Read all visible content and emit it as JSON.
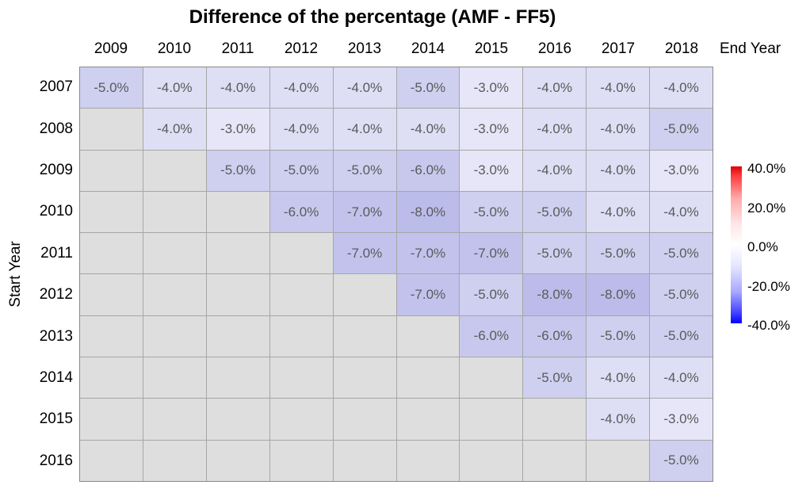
{
  "title": "Difference of the percentage (AMF - FF5)",
  "axis": {
    "x_label": "End Year",
    "y_label": "Start Year"
  },
  "chart_data": {
    "type": "heatmap",
    "title": "Difference of the percentage (AMF - FF5)",
    "xlabel": "End Year",
    "ylabel": "Start Year",
    "columns": [
      "2009",
      "2010",
      "2011",
      "2012",
      "2013",
      "2014",
      "2015",
      "2016",
      "2017",
      "2018"
    ],
    "rows": [
      "2007",
      "2008",
      "2009",
      "2010",
      "2011",
      "2012",
      "2013",
      "2014",
      "2015",
      "2016"
    ],
    "values": [
      [
        -5,
        -4,
        -4,
        -4,
        -4,
        -5,
        -3,
        -4,
        -4,
        -4
      ],
      [
        null,
        -4,
        -3,
        -4,
        -4,
        -4,
        -3,
        -4,
        -4,
        -5
      ],
      [
        null,
        null,
        -5,
        -5,
        -5,
        -6,
        -3,
        -4,
        -4,
        -3
      ],
      [
        null,
        null,
        null,
        -6,
        -7,
        -8,
        -5,
        -5,
        -4,
        -4
      ],
      [
        null,
        null,
        null,
        null,
        -7,
        -7,
        -7,
        -5,
        -5,
        -5
      ],
      [
        null,
        null,
        null,
        null,
        null,
        -7,
        -5,
        -8,
        -8,
        -5
      ],
      [
        null,
        null,
        null,
        null,
        null,
        null,
        -6,
        -6,
        -5,
        -5
      ],
      [
        null,
        null,
        null,
        null,
        null,
        null,
        null,
        -5,
        -4,
        -4
      ],
      [
        null,
        null,
        null,
        null,
        null,
        null,
        null,
        null,
        -4,
        -3
      ],
      [
        null,
        null,
        null,
        null,
        null,
        null,
        null,
        null,
        null,
        -5
      ]
    ],
    "value_unit": "%",
    "value_decimals": 1,
    "ylim": [
      -40,
      40
    ],
    "legend_position": "right",
    "colorbar": {
      "min": -40,
      "max": 40,
      "tick_labels": [
        "40.0%",
        "20.0%",
        "0.0%",
        "-20.0%",
        "-40.0%"
      ],
      "gradient_stops": [
        {
          "pos": 0,
          "color": "#dd0000"
        },
        {
          "pos": 6,
          "color": "#ff3c3c"
        },
        {
          "pos": 20,
          "color": "#ffa8a8"
        },
        {
          "pos": 36,
          "color": "#ffe4e4"
        },
        {
          "pos": 50,
          "color": "#ffffff"
        },
        {
          "pos": 64,
          "color": "#e4e4ff"
        },
        {
          "pos": 80,
          "color": "#a8a8ff"
        },
        {
          "pos": 94,
          "color": "#3c3cff"
        },
        {
          "pos": 100,
          "color": "#0000ff"
        }
      ]
    },
    "colors": {
      "empty_cell": "#dedede",
      "grid_line": "#a6a6a6",
      "grid_border": "#8a8a8a",
      "cell_text": "#5a5a5a",
      "value_colors": {
        "-3": "#e6e6f8",
        "-4": "#dedef5",
        "-5": "#cfcff0",
        "-6": "#c8c8ee",
        "-7": "#c2c2ec",
        "-8": "#bcbcea"
      }
    }
  }
}
